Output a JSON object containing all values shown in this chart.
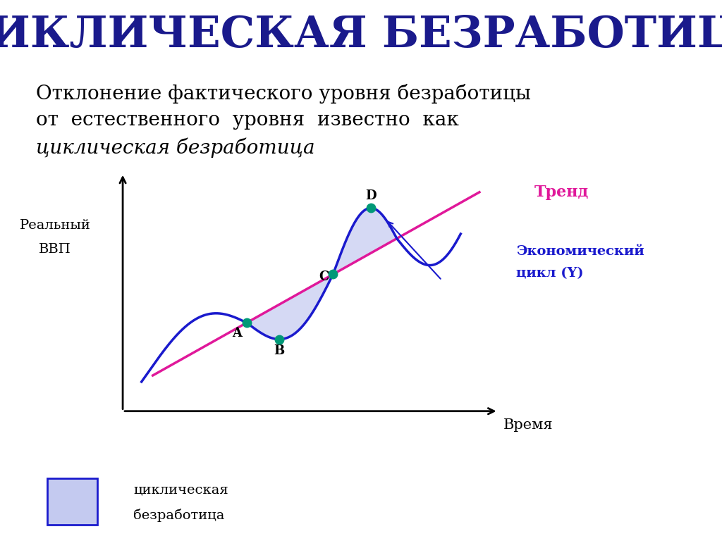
{
  "title": "ЦИКЛИЧЕСКАЯ БЕЗРАБОТИЦА",
  "title_color": "#1a1a8c",
  "subtitle_line1": "Отклонение фактического уровня безработицы",
  "subtitle_line2": "от  естественного  уровня  известно  как",
  "subtitle_line3": "циклическая безработица",
  "ylabel": "Реальный\nВВП",
  "xlabel": "Время",
  "trend_label": "Тренд",
  "trend_color": "#e0189a",
  "cycle_color": "#1a1acd",
  "fill_color": "#c4caf0",
  "fill_alpha": 0.7,
  "legend_label_line1": "циклическая",
  "legend_label_line2": "безработица",
  "point_color": "#009977",
  "background_color": "#ffffff"
}
